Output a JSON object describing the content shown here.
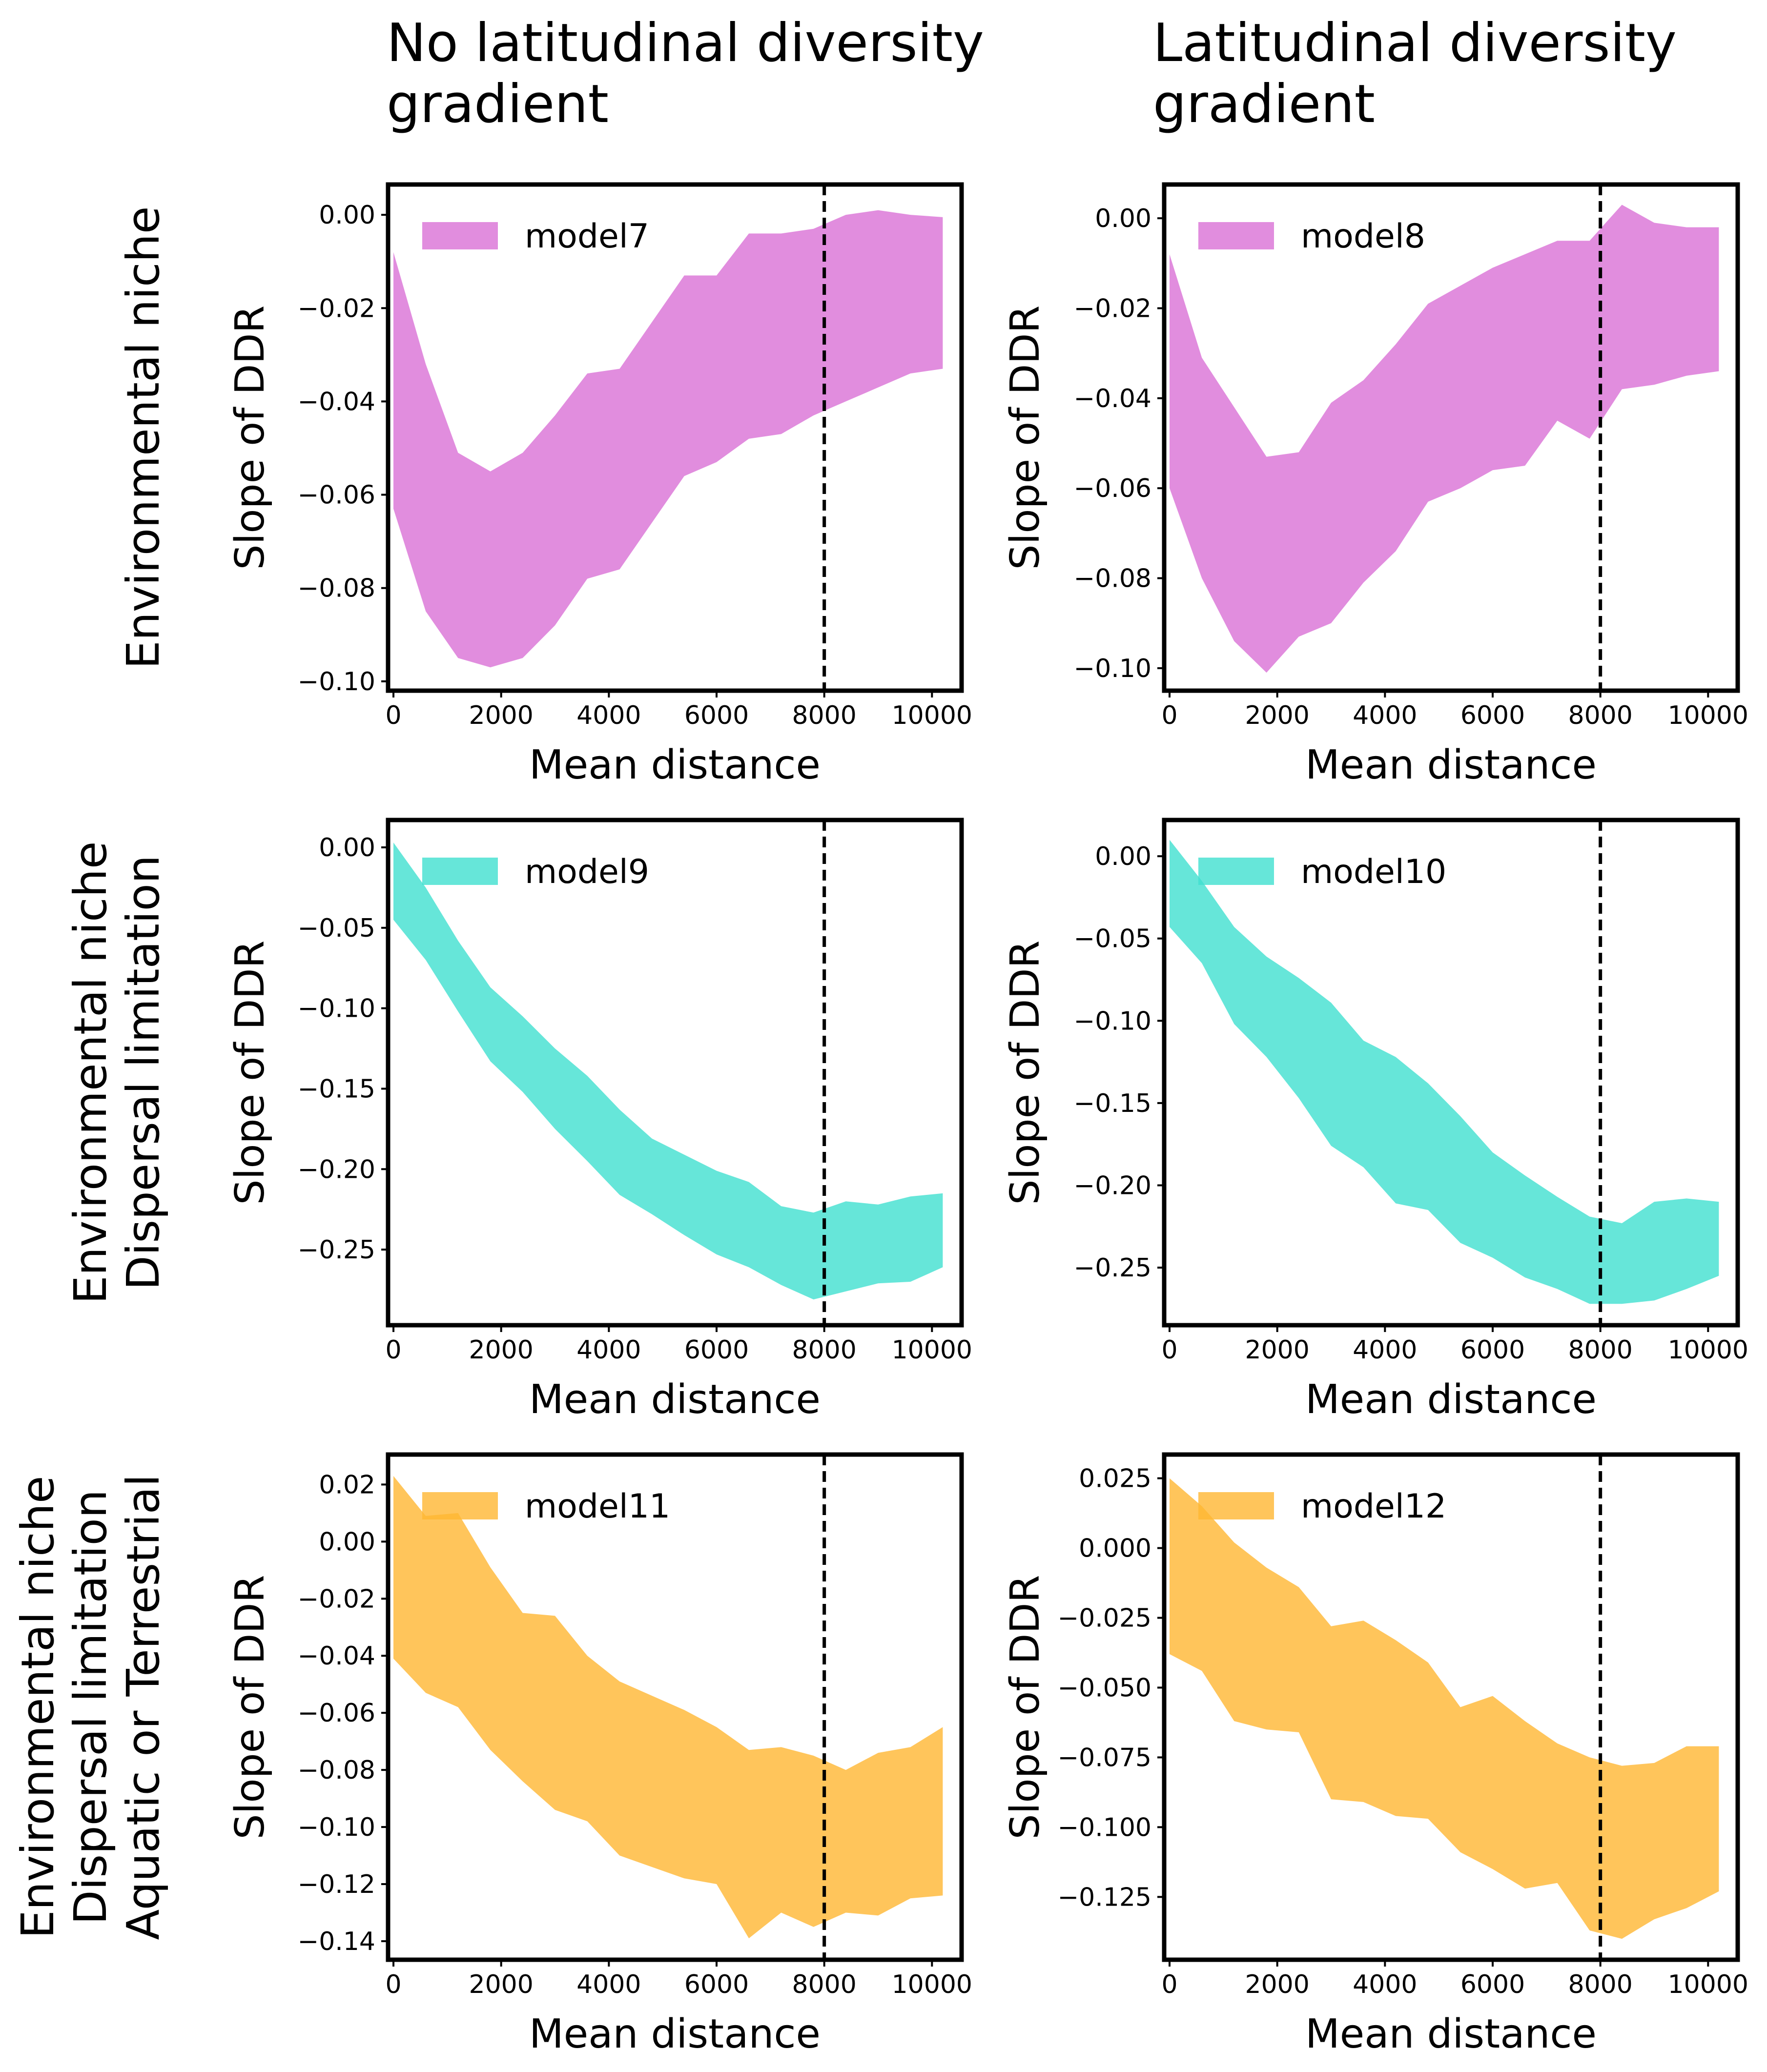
{
  "column_titles": [
    [
      "No latitudinal diversity",
      "gradient"
    ],
    [
      "Latitudinal diversity",
      "gradient"
    ]
  ],
  "row_titles": [
    [
      "Environmental niche"
    ],
    [
      "Environmental niche",
      "Dispersal limitation"
    ],
    [
      "Environmental niche",
      "Dispersal limitation",
      "Aquatic or Terrestrial"
    ]
  ],
  "chart_data": [
    {
      "type": "area",
      "xlabel": "Mean distance",
      "ylabel": "Slope of DDR",
      "xlim": [
        -100,
        10550
      ],
      "ylim": [
        -0.102,
        0.0065
      ],
      "xticks": [
        0,
        2000,
        4000,
        6000,
        8000,
        10000
      ],
      "yticks": [
        0.0,
        -0.02,
        -0.04,
        -0.06,
        -0.08,
        -0.1
      ],
      "ytick_labels": [
        "0.00",
        "−0.02",
        "−0.04",
        "−0.06",
        "−0.08",
        "−0.10"
      ],
      "vline": 8000,
      "legend_position": "top-left",
      "grid": false,
      "series": [
        {
          "name": "model7",
          "color": "#da70d6",
          "x": [
            0,
            600,
            1200,
            1800,
            2400,
            3000,
            3600,
            4200,
            4800,
            5400,
            6000,
            6600,
            7200,
            7800,
            8400,
            9000,
            9600,
            10200
          ],
          "upper": [
            -0.008,
            -0.032,
            -0.051,
            -0.055,
            -0.051,
            -0.043,
            -0.034,
            -0.033,
            -0.023,
            -0.013,
            -0.013,
            -0.004,
            -0.004,
            -0.003,
            0.0,
            0.001,
            0.0,
            -0.0005
          ],
          "lower": [
            -0.063,
            -0.085,
            -0.095,
            -0.097,
            -0.095,
            -0.088,
            -0.078,
            -0.076,
            -0.066,
            -0.056,
            -0.053,
            -0.048,
            -0.047,
            -0.043,
            -0.04,
            -0.037,
            -0.034,
            -0.033
          ]
        }
      ]
    },
    {
      "type": "area",
      "xlabel": "Mean distance",
      "ylabel": "Slope of DDR",
      "xlim": [
        -100,
        10550
      ],
      "ylim": [
        -0.105,
        0.0075
      ],
      "xticks": [
        0,
        2000,
        4000,
        6000,
        8000,
        10000
      ],
      "yticks": [
        0.0,
        -0.02,
        -0.04,
        -0.06,
        -0.08,
        -0.1
      ],
      "ytick_labels": [
        "0.00",
        "−0.02",
        "−0.04",
        "−0.06",
        "−0.08",
        "−0.10"
      ],
      "vline": 8000,
      "legend_position": "top-left",
      "grid": false,
      "series": [
        {
          "name": "model8",
          "color": "#da70d6",
          "x": [
            0,
            600,
            1200,
            1800,
            2400,
            3000,
            3600,
            4200,
            4800,
            5400,
            6000,
            6600,
            7200,
            7800,
            8400,
            9000,
            9600,
            10200
          ],
          "upper": [
            -0.008,
            -0.031,
            -0.042,
            -0.053,
            -0.052,
            -0.041,
            -0.036,
            -0.028,
            -0.019,
            -0.015,
            -0.011,
            -0.008,
            -0.005,
            -0.005,
            0.003,
            -0.001,
            -0.002,
            -0.002
          ],
          "lower": [
            -0.06,
            -0.08,
            -0.094,
            -0.101,
            -0.093,
            -0.09,
            -0.081,
            -0.074,
            -0.063,
            -0.06,
            -0.056,
            -0.055,
            -0.045,
            -0.049,
            -0.038,
            -0.037,
            -0.035,
            -0.034
          ]
        }
      ]
    },
    {
      "type": "area",
      "xlabel": "Mean distance",
      "ylabel": "Slope of DDR",
      "xlim": [
        -100,
        10550
      ],
      "ylim": [
        -0.297,
        0.017
      ],
      "xticks": [
        0,
        2000,
        4000,
        6000,
        8000,
        10000
      ],
      "yticks": [
        0.0,
        -0.05,
        -0.1,
        -0.15,
        -0.2,
        -0.25
      ],
      "ytick_labels": [
        "0.00",
        "−0.05",
        "−0.10",
        "−0.15",
        "−0.20",
        "−0.25"
      ],
      "vline": 8000,
      "legend_position": "top-left",
      "grid": false,
      "series": [
        {
          "name": "model9",
          "color": "#40e0d0",
          "x": [
            0,
            600,
            1200,
            1800,
            2400,
            3000,
            3600,
            4200,
            4800,
            5400,
            6000,
            6600,
            7200,
            7800,
            8400,
            9000,
            9600,
            10200
          ],
          "upper": [
            0.003,
            -0.025,
            -0.058,
            -0.087,
            -0.105,
            -0.125,
            -0.142,
            -0.163,
            -0.181,
            -0.191,
            -0.201,
            -0.208,
            -0.223,
            -0.227,
            -0.22,
            -0.222,
            -0.217,
            -0.215
          ],
          "lower": [
            -0.045,
            -0.07,
            -0.102,
            -0.133,
            -0.152,
            -0.175,
            -0.195,
            -0.216,
            -0.228,
            -0.241,
            -0.253,
            -0.261,
            -0.272,
            -0.281,
            -0.276,
            -0.271,
            -0.27,
            -0.261
          ]
        }
      ]
    },
    {
      "type": "area",
      "xlabel": "Mean distance",
      "ylabel": "Slope of DDR",
      "xlim": [
        -100,
        10550
      ],
      "ylim": [
        -0.285,
        0.022
      ],
      "xticks": [
        0,
        2000,
        4000,
        6000,
        8000,
        10000
      ],
      "yticks": [
        0.0,
        -0.05,
        -0.1,
        -0.15,
        -0.2,
        -0.25
      ],
      "ytick_labels": [
        "0.00",
        "−0.05",
        "−0.10",
        "−0.15",
        "−0.20",
        "−0.25"
      ],
      "vline": 8000,
      "legend_position": "top-left",
      "grid": false,
      "series": [
        {
          "name": "model10",
          "color": "#40e0d0",
          "x": [
            0,
            600,
            1200,
            1800,
            2400,
            3000,
            3600,
            4200,
            4800,
            5400,
            6000,
            6600,
            7200,
            7800,
            8400,
            9000,
            9600,
            10200
          ],
          "upper": [
            0.01,
            -0.015,
            -0.043,
            -0.061,
            -0.074,
            -0.089,
            -0.112,
            -0.122,
            -0.138,
            -0.158,
            -0.18,
            -0.194,
            -0.207,
            -0.219,
            -0.223,
            -0.21,
            -0.208,
            -0.21
          ],
          "lower": [
            -0.043,
            -0.065,
            -0.102,
            -0.122,
            -0.147,
            -0.176,
            -0.189,
            -0.211,
            -0.215,
            -0.235,
            -0.244,
            -0.256,
            -0.263,
            -0.272,
            -0.272,
            -0.27,
            -0.263,
            -0.255
          ]
        }
      ]
    },
    {
      "type": "area",
      "xlabel": "Mean distance",
      "ylabel": "Slope of DDR",
      "xlim": [
        -100,
        10550
      ],
      "ylim": [
        -0.1465,
        0.0305
      ],
      "xticks": [
        0,
        2000,
        4000,
        6000,
        8000,
        10000
      ],
      "yticks": [
        0.02,
        0.0,
        -0.02,
        -0.04,
        -0.06,
        -0.08,
        -0.1,
        -0.12,
        -0.14
      ],
      "ytick_labels": [
        "0.02",
        "0.00",
        "−0.02",
        "−0.04",
        "−0.06",
        "−0.08",
        "−0.10",
        "−0.12",
        "−0.14"
      ],
      "vline": 8000,
      "legend_position": "top-left",
      "grid": false,
      "series": [
        {
          "name": "model11",
          "color": "#ffb732",
          "x": [
            0,
            600,
            1200,
            1800,
            2400,
            3000,
            3600,
            4200,
            4800,
            5400,
            6000,
            6600,
            7200,
            7800,
            8400,
            9000,
            9600,
            10200
          ],
          "upper": [
            0.023,
            0.009,
            0.01,
            -0.009,
            -0.025,
            -0.026,
            -0.04,
            -0.049,
            -0.054,
            -0.059,
            -0.065,
            -0.073,
            -0.072,
            -0.075,
            -0.08,
            -0.074,
            -0.072,
            -0.065
          ],
          "lower": [
            -0.041,
            -0.053,
            -0.058,
            -0.073,
            -0.084,
            -0.094,
            -0.098,
            -0.11,
            -0.114,
            -0.118,
            -0.12,
            -0.139,
            -0.13,
            -0.135,
            -0.13,
            -0.131,
            -0.125,
            -0.124
          ]
        }
      ]
    },
    {
      "type": "area",
      "xlabel": "Mean distance",
      "ylabel": "Slope of DDR",
      "xlim": [
        -100,
        10550
      ],
      "ylim": [
        -0.1475,
        0.0335
      ],
      "xticks": [
        0,
        2000,
        4000,
        6000,
        8000,
        10000
      ],
      "yticks": [
        0.025,
        0.0,
        -0.025,
        -0.05,
        -0.075,
        -0.1,
        -0.125
      ],
      "ytick_labels": [
        "0.025",
        "0.000",
        "−0.025",
        "−0.050",
        "−0.075",
        "−0.100",
        "−0.125"
      ],
      "vline": 8000,
      "legend_position": "top-left",
      "grid": false,
      "series": [
        {
          "name": "model12",
          "color": "#ffb732",
          "x": [
            0,
            600,
            1200,
            1800,
            2400,
            3000,
            3600,
            4200,
            4800,
            5400,
            6000,
            6600,
            7200,
            7800,
            8400,
            9000,
            9600,
            10200
          ],
          "upper": [
            0.025,
            0.015,
            0.002,
            -0.007,
            -0.014,
            -0.028,
            -0.026,
            -0.033,
            -0.041,
            -0.057,
            -0.053,
            -0.062,
            -0.07,
            -0.075,
            -0.078,
            -0.077,
            -0.071,
            -0.071
          ],
          "lower": [
            -0.038,
            -0.044,
            -0.062,
            -0.065,
            -0.066,
            -0.09,
            -0.091,
            -0.096,
            -0.097,
            -0.109,
            -0.115,
            -0.122,
            -0.12,
            -0.137,
            -0.14,
            -0.133,
            -0.129,
            -0.123
          ]
        }
      ]
    }
  ]
}
